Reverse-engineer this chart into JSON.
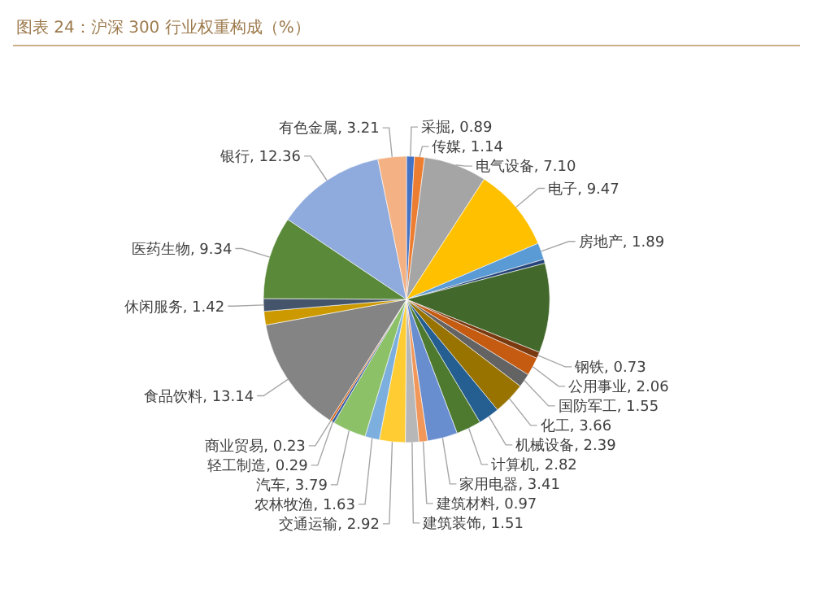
{
  "chart_data": {
    "type": "pie",
    "title": "图表 24：沪深 300 行业权重构成（%）",
    "categories": [
      "采掘",
      "传媒",
      "电气设备",
      "电子",
      "房地产",
      null,
      null,
      "钢铁",
      "公用事业",
      "国防军工",
      "化工",
      "机械设备",
      "计算机",
      "家用电器",
      "建筑材料",
      "建筑装饰",
      "交通运输",
      "农林牧渔",
      "汽车",
      "轻工制造",
      "商业贸易",
      "食品饮料",
      null,
      "休闲服务",
      "医药生物",
      "银行",
      "有色金属"
    ],
    "values": [
      0.89,
      1.14,
      7.1,
      9.47,
      1.89,
      0.45,
      10.09,
      0.73,
      2.06,
      1.55,
      3.66,
      2.39,
      2.82,
      3.41,
      0.97,
      1.51,
      2.92,
      1.63,
      3.79,
      0.29,
      0.23,
      13.14,
      1.54,
      1.42,
      9.34,
      12.36,
      3.21
    ],
    "value_labels": [
      "0.89",
      "1.14",
      "7.10",
      "9.47",
      "1.89",
      null,
      null,
      "0.73",
      "2.06",
      "1.55",
      "3.66",
      "2.39",
      "2.82",
      "3.41",
      "0.97",
      "1.51",
      "2.92",
      "1.63",
      "3.79",
      "0.29",
      "0.23",
      "13.14",
      null,
      "1.42",
      "9.34",
      "12.36",
      "3.21"
    ],
    "colors": [
      "#4472c4",
      "#ed7d31",
      "#a5a5a5",
      "#ffc000",
      "#5b9bd5",
      "#264478",
      "#43682b",
      "#7a3a10",
      "#c55a11",
      "#636363",
      "#997300",
      "#255e91",
      "#4e7a30",
      "#698ed0",
      "#f1975a",
      "#b7b7b7",
      "#ffcd33",
      "#7cafdd",
      "#8cc168",
      "#335aa1",
      "#d26012",
      "#848484",
      "#cc9a00",
      "#44546a",
      "#5a8a39",
      "#8faadc",
      "#f4b183"
    ]
  }
}
